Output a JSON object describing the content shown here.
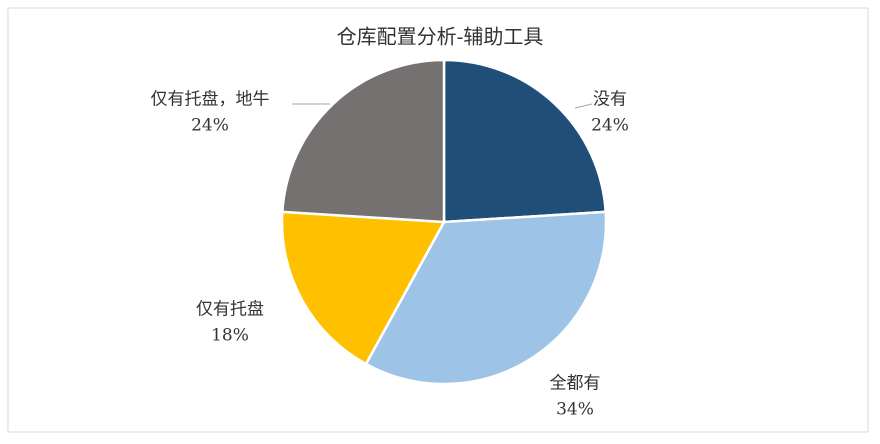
{
  "chart_data": {
    "type": "pie",
    "title": "仓库配置分析-辅助工具",
    "categories": [
      "没有",
      "全都有",
      "仅有托盘",
      "仅有托盘，地牛"
    ],
    "values": [
      24,
      34,
      18,
      24
    ],
    "value_labels": [
      "24%",
      "34%",
      "18%",
      "24%"
    ],
    "colors": [
      "#1f4e79",
      "#9dc3e6",
      "#ffc000",
      "#767171"
    ]
  }
}
